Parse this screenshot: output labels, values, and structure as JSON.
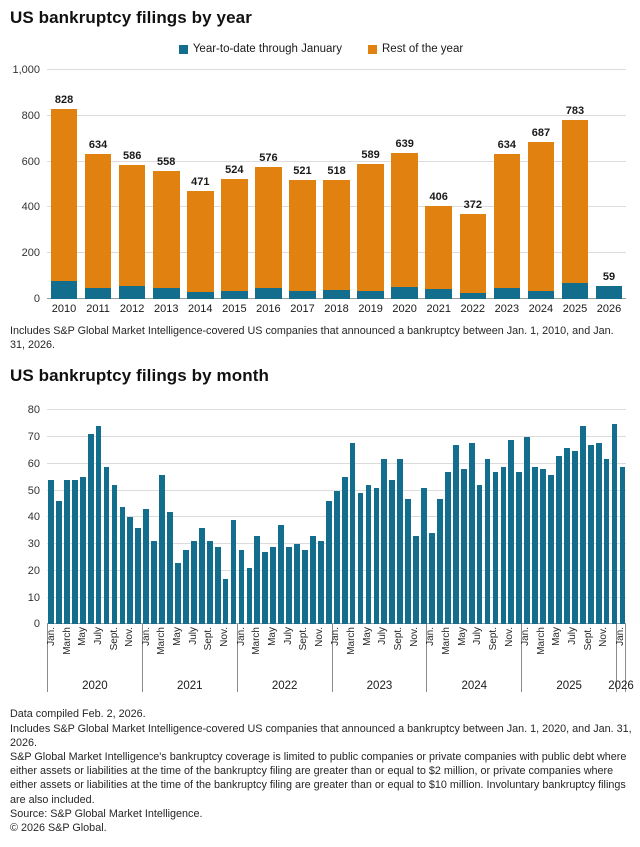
{
  "colors": {
    "teal": "#136d8d",
    "orange": "#e1810f",
    "gridline": "#dcdcdc",
    "axis": "#8c8c8c"
  },
  "yearly_note": "Includes S&P Global Market Intelligence-covered US companies that announced a bankruptcy between Jan. 1, 2010, and Jan. 31, 2026.",
  "footer": {
    "lines": [
      "Data compiled Feb. 2, 2026.",
      "Includes S&P Global Market Intelligence-covered US companies that announced a bankruptcy between Jan. 1, 2020, and Jan. 31, 2026.",
      "S&P Global Market Intelligence's bankruptcy coverage is limited to public companies or private companies with public debt where either assets or liabilities at the time of the bankruptcy filing are greater than or equal to $2 million, or private companies where either assets or liabilities at the time of the bankruptcy filing are greater than or equal to $10 million. Involuntary bankruptcy filings are also included.",
      "Source: S&P Global Market Intelligence.",
      "© 2026 S&P Global."
    ]
  },
  "chart_data": [
    {
      "type": "bar",
      "stacked": true,
      "title": "US bankruptcy filings by year",
      "legend_position": "top",
      "grid": true,
      "categories": [
        "2010",
        "2011",
        "2012",
        "2013",
        "2014",
        "2015",
        "2016",
        "2017",
        "2018",
        "2019",
        "2020",
        "2021",
        "2022",
        "2023",
        "2024",
        "2025",
        "2026"
      ],
      "totals": [
        828,
        634,
        586,
        558,
        471,
        524,
        576,
        521,
        518,
        589,
        639,
        406,
        372,
        634,
        687,
        783,
        59
      ],
      "series": [
        {
          "name": "Year-to-date through January",
          "color": "#136d8d",
          "values": [
            78,
            50,
            56,
            46,
            30,
            36,
            46,
            33,
            40,
            34,
            54,
            43,
            28,
            50,
            34,
            70,
            59
          ]
        },
        {
          "name": "Rest of the year",
          "color": "#e1810f",
          "values": [
            750,
            584,
            530,
            512,
            441,
            488,
            530,
            488,
            478,
            555,
            585,
            363,
            344,
            584,
            653,
            713,
            0
          ]
        }
      ],
      "ylim": [
        0,
        1000
      ],
      "yticks": [
        {
          "v": 0,
          "label": "0"
        },
        {
          "v": 200,
          "label": "200"
        },
        {
          "v": 400,
          "label": "400"
        },
        {
          "v": 600,
          "label": "600"
        },
        {
          "v": 800,
          "label": "800"
        },
        {
          "v": 1000,
          "label": "1,000"
        }
      ]
    },
    {
      "type": "bar",
      "title": "US bankruptcy filings by month",
      "grid": true,
      "bar_color": "#136d8d",
      "ylim": [
        0,
        80
      ],
      "yticks": [
        {
          "v": 0,
          "label": "0"
        },
        {
          "v": 10,
          "label": "10"
        },
        {
          "v": 20,
          "label": "20"
        },
        {
          "v": 30,
          "label": "30"
        },
        {
          "v": 40,
          "label": "40"
        },
        {
          "v": 50,
          "label": "50"
        },
        {
          "v": 60,
          "label": "60"
        },
        {
          "v": 70,
          "label": "70"
        },
        {
          "v": 80,
          "label": "80"
        }
      ],
      "month_tick_labels": [
        "Jan.",
        "March",
        "May",
        "July",
        "Sept.",
        "Nov."
      ],
      "groups": [
        {
          "year": "2020",
          "values": [
            54,
            46,
            54,
            54,
            55,
            71,
            74,
            59,
            52,
            44,
            40,
            36
          ]
        },
        {
          "year": "2021",
          "values": [
            43,
            31,
            56,
            42,
            23,
            28,
            31,
            36,
            31,
            29,
            17,
            39
          ]
        },
        {
          "year": "2022",
          "values": [
            28,
            21,
            33,
            27,
            29,
            37,
            29,
            30,
            28,
            33,
            31,
            46
          ]
        },
        {
          "year": "2023",
          "values": [
            50,
            55,
            68,
            49,
            52,
            51,
            62,
            54,
            62,
            47,
            33,
            51
          ]
        },
        {
          "year": "2024",
          "values": [
            34,
            47,
            57,
            67,
            58,
            68,
            52,
            62,
            57,
            59,
            69,
            57
          ]
        },
        {
          "year": "2025",
          "values": [
            70,
            59,
            58,
            56,
            63,
            66,
            65,
            74,
            67,
            68,
            62,
            75
          ]
        },
        {
          "year": "2026",
          "values": [
            59
          ]
        }
      ]
    }
  ]
}
